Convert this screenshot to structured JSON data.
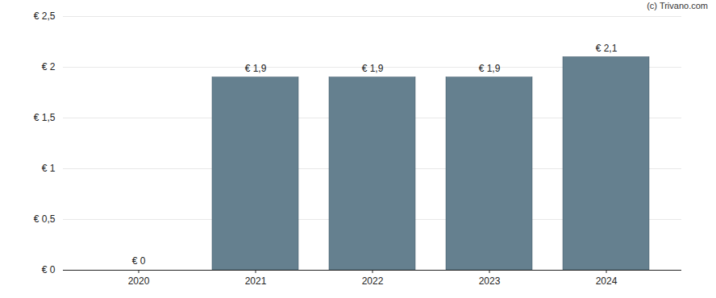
{
  "chart_data": {
    "type": "bar",
    "caption": "(c) Trivano.com",
    "categories": [
      "2020",
      "2021",
      "2022",
      "2023",
      "2024"
    ],
    "values": [
      0,
      1.9,
      1.9,
      1.9,
      2.1
    ],
    "value_labels": [
      "€ 0",
      "€ 1,9",
      "€ 1,9",
      "€ 1,9",
      "€ 2,1"
    ],
    "color": "#65808f",
    "ylim": [
      0,
      2.5
    ],
    "yticks": [
      {
        "value": 0,
        "label": "€ 0"
      },
      {
        "value": 0.5,
        "label": "€ 0,5"
      },
      {
        "value": 1,
        "label": "€ 1"
      },
      {
        "value": 1.5,
        "label": "€ 1,5"
      },
      {
        "value": 2,
        "label": "€ 2"
      },
      {
        "value": 2.5,
        "label": "€ 2,5"
      }
    ],
    "grid": true,
    "data_labels": true
  }
}
